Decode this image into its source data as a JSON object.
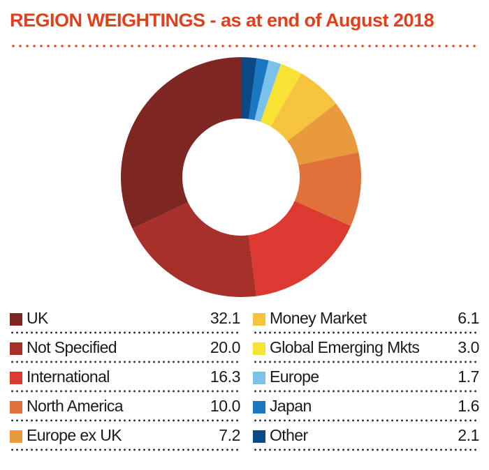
{
  "title": "REGION WEIGHTINGS - as at end of August 2018",
  "colors": {
    "title": "#e0401c",
    "title_dots": "#e0401c",
    "text": "#1a1a1a"
  },
  "chart_data": {
    "type": "pie",
    "donut": true,
    "title": "REGION WEIGHTINGS - as at end of August 2018",
    "start_angle_deg": 0,
    "direction": "counterclockwise",
    "slices": [
      {
        "label": "UK",
        "value": 32.1,
        "color": "#7e2621"
      },
      {
        "label": "Not Specified",
        "value": 20.0,
        "color": "#a8302b"
      },
      {
        "label": "International",
        "value": 16.3,
        "color": "#dc3a30"
      },
      {
        "label": "North America",
        "value": 10.0,
        "color": "#e0713a"
      },
      {
        "label": "Europe ex UK",
        "value": 7.2,
        "color": "#e89a3c"
      },
      {
        "label": "Money Market",
        "value": 6.1,
        "color": "#f5c33e"
      },
      {
        "label": "Global Emerging Mkts",
        "value": 3.0,
        "color": "#f8e335"
      },
      {
        "label": "Europe",
        "value": 1.7,
        "color": "#7cc1ea"
      },
      {
        "label": "Japan",
        "value": 1.6,
        "color": "#1a78c2"
      },
      {
        "label": "Other",
        "value": 2.1,
        "color": "#0d4a85"
      }
    ]
  },
  "legend": {
    "left": [
      {
        "label": "UK",
        "value": "32.1",
        "color": "#7e2621"
      },
      {
        "label": "Not Specified",
        "value": "20.0",
        "color": "#a8302b"
      },
      {
        "label": "International",
        "value": "16.3",
        "color": "#dc3a30"
      },
      {
        "label": "North America",
        "value": "10.0",
        "color": "#e0713a"
      },
      {
        "label": "Europe ex UK",
        "value": "7.2",
        "color": "#e89a3c"
      }
    ],
    "right": [
      {
        "label": "Money Market",
        "value": "6.1",
        "color": "#f5c33e"
      },
      {
        "label": "Global Emerging Mkts",
        "value": "3.0",
        "color": "#f8e335"
      },
      {
        "label": "Europe",
        "value": "1.7",
        "color": "#7cc1ea"
      },
      {
        "label": "Japan",
        "value": "1.6",
        "color": "#1a78c2"
      },
      {
        "label": "Other",
        "value": "2.1",
        "color": "#0d4a85"
      }
    ]
  }
}
